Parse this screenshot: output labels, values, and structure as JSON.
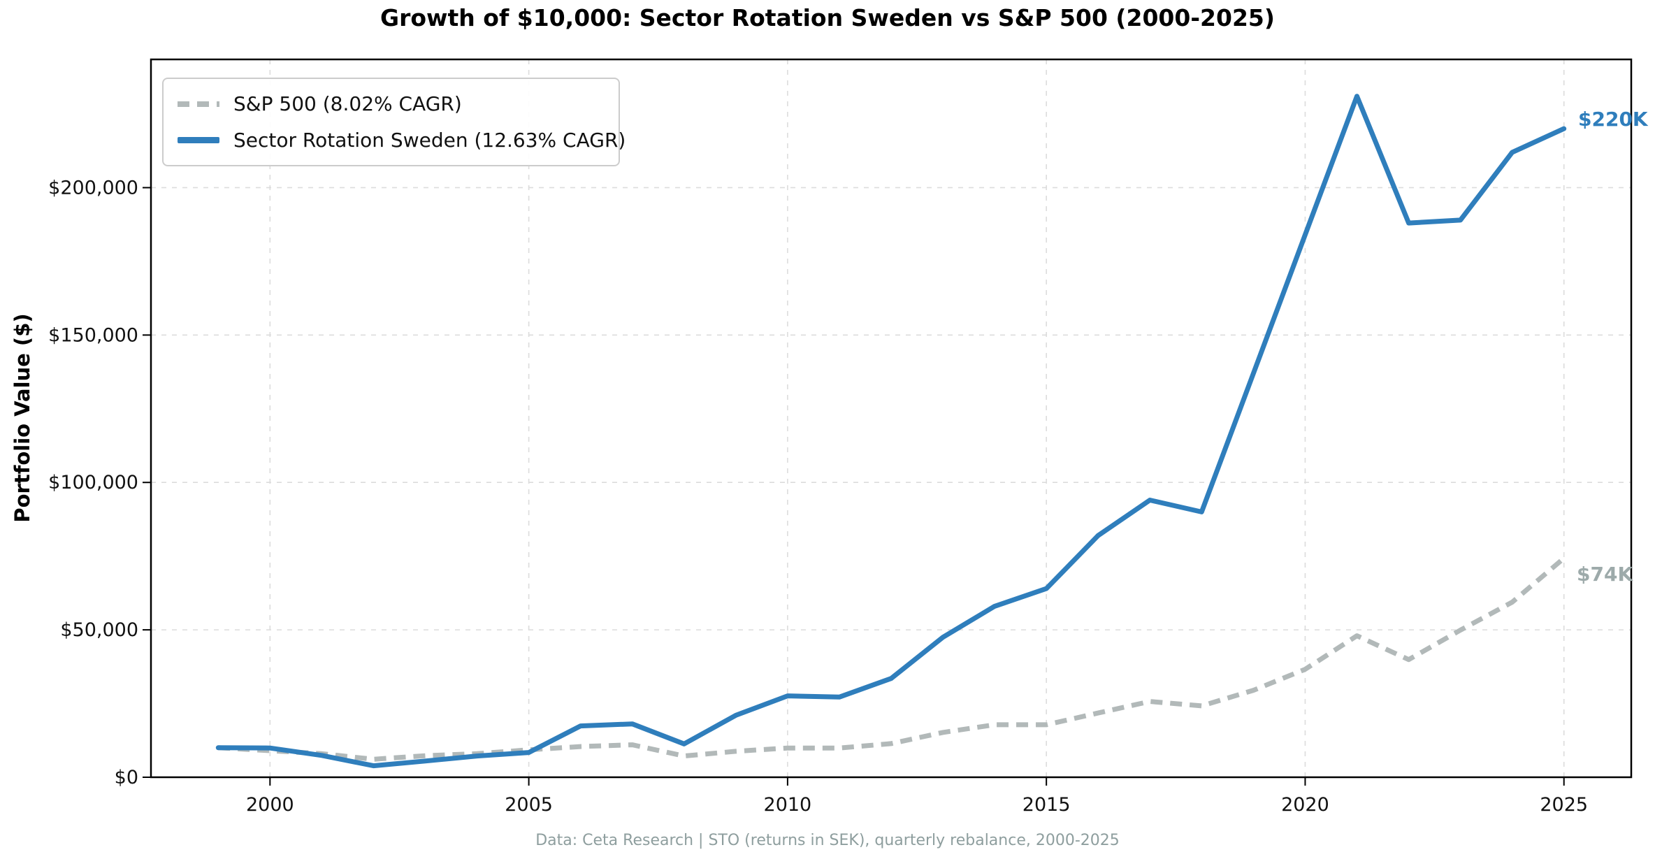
{
  "title": "Growth of $10,000: Sector Rotation Sweden vs S&P 500 (2000-2025)",
  "axes": {
    "ylabel": "Portfolio Value ($)"
  },
  "footer": "Data: Ceta Research | STO (returns in SEK), quarterly rebalance, 2000-2025",
  "legend": {
    "position": "upper left",
    "items": [
      {
        "label": "S&P 500 (8.02% CAGR)"
      },
      {
        "label": "Sector Rotation Sweden (12.63% CAGR)"
      }
    ]
  },
  "annotations": {
    "sweden_end_label": "$220K",
    "sp500_end_label": "$74K"
  },
  "colors": {
    "sweden_line": "#2f7ebc",
    "sp500_line": "#b2b9b9",
    "sp500_end_label": "#9daaaa",
    "grid": "#dcdcdc",
    "spine": "#000000",
    "footer_text": "#8e9e9e"
  },
  "chart_data": {
    "type": "line",
    "title": "Growth of $10,000: Sector Rotation Sweden vs S&P 500 (2000-2025)",
    "xlabel": "",
    "ylabel": "Portfolio Value ($)",
    "x": [
      1999,
      2000,
      2001,
      2002,
      2003,
      2004,
      2005,
      2006,
      2007,
      2008,
      2009,
      2010,
      2011,
      2012,
      2013,
      2014,
      2015,
      2016,
      2017,
      2018,
      2019,
      2020,
      2021,
      2022,
      2023,
      2024,
      2025
    ],
    "series": [
      {
        "id": "sp500",
        "name": "S&P 500 (8.02% CAGR)",
        "color": "#b2b9b9",
        "style": "dashed",
        "dash": [
          17,
          11
        ],
        "linewidth": 7,
        "values": [
          10000,
          9000,
          8000,
          6100,
          7300,
          8000,
          9300,
          10400,
          11000,
          7200,
          8800,
          9900,
          9900,
          11400,
          15200,
          17800,
          17800,
          21800,
          25700,
          24200,
          29500,
          36600,
          48000,
          39900,
          49900,
          59400,
          74300
        ]
      },
      {
        "id": "sweden",
        "name": "Sector Rotation Sweden (12.63% CAGR)",
        "color": "#2f7ebc",
        "style": "solid",
        "dash": null,
        "linewidth": 7,
        "values": [
          10000,
          9900,
          7400,
          3900,
          5500,
          7200,
          8400,
          17400,
          18100,
          11300,
          21000,
          27600,
          27200,
          33500,
          47500,
          58000,
          64000,
          82000,
          94000,
          90000,
          137000,
          184000,
          231000,
          188000,
          189000,
          212000,
          220000
        ]
      }
    ],
    "x_ticks": [
      {
        "value": 2000,
        "label": "2000"
      },
      {
        "value": 2005,
        "label": "2005"
      },
      {
        "value": 2010,
        "label": "2010"
      },
      {
        "value": 2015,
        "label": "2015"
      },
      {
        "value": 2020,
        "label": "2020"
      },
      {
        "value": 2025,
        "label": "2025"
      }
    ],
    "y_ticks": [
      {
        "value": 0,
        "label": "$0"
      },
      {
        "value": 50000,
        "label": "$50,000"
      },
      {
        "value": 100000,
        "label": "$100,000"
      },
      {
        "value": 150000,
        "label": "$150,000"
      },
      {
        "value": 200000,
        "label": "$200,000"
      }
    ],
    "xlim": [
      1997.7,
      2026.3
    ],
    "ylim": [
      0,
      243500
    ],
    "grid": true,
    "grid_style": "dashed",
    "legend_position": "upper left"
  }
}
